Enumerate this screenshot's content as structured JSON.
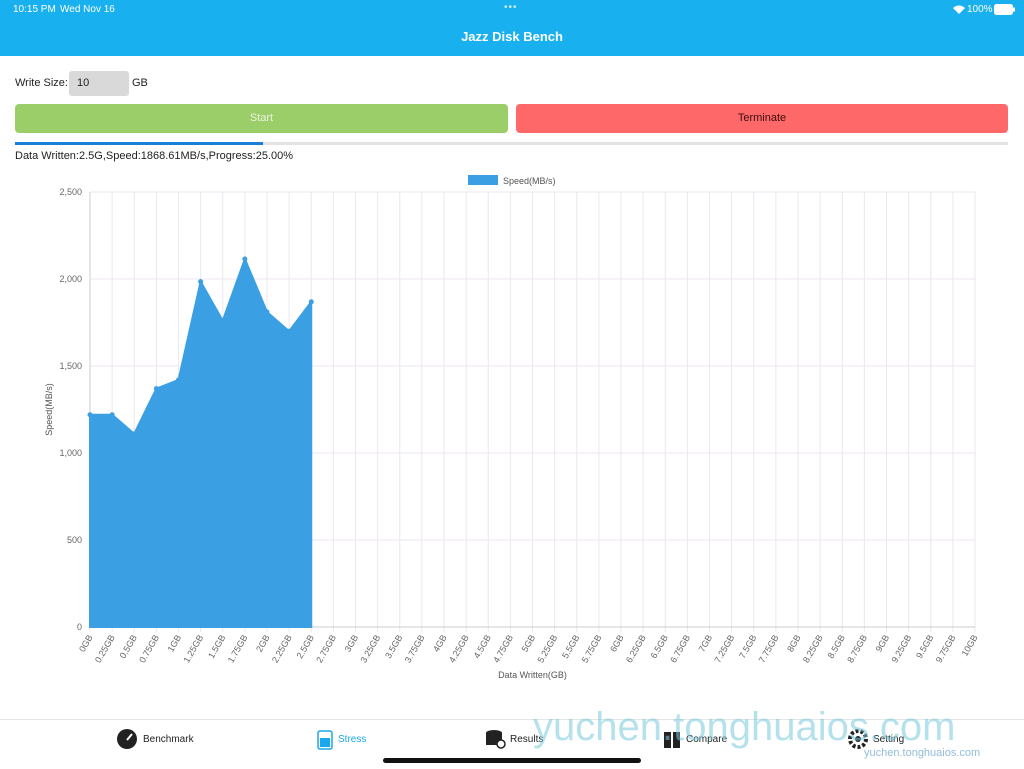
{
  "status_bar": {
    "time": "10:15 PM",
    "date": "Wed Nov 16",
    "battery": "100%"
  },
  "nav": {
    "title": "Jazz Disk Bench"
  },
  "form": {
    "label": "Write Size:",
    "value": "10",
    "unit": "GB"
  },
  "buttons": {
    "start": "Start",
    "terminate": "Terminate"
  },
  "progress": {
    "text": "Data Written:2.5G,Speed:1868.61MB/s,Progress:25.00%",
    "value": 25,
    "max": 100
  },
  "chart_data": {
    "type": "area",
    "x_label": "Data Written(GB)",
    "y_label": "Speed(MB/s)",
    "categories": [
      "0GB",
      "0.25GB",
      "0.5GB",
      "0.75GB",
      "1GB",
      "1.25GB",
      "1.5GB",
      "1.75GB",
      "2GB",
      "2.25GB",
      "2.5GB",
      "2.75GB",
      "3GB",
      "3.25GB",
      "3.5GB",
      "3.75GB",
      "4GB",
      "4.25GB",
      "4.5GB",
      "4.75GB",
      "5GB",
      "5.25GB",
      "5.5GB",
      "5.75GB",
      "6GB",
      "6.25GB",
      "6.5GB",
      "6.75GB",
      "7GB",
      "7.25GB",
      "7.5GB",
      "7.75GB",
      "8GB",
      "8.25GB",
      "8.5GB",
      "8.75GB",
      "9GB",
      "9.25GB",
      "9.5GB",
      "9.75GB",
      "10GB"
    ],
    "series": [
      {
        "name": "Speed(MB/s)",
        "color": "#3a9fe3",
        "values": [
          1220,
          1220,
          1110,
          1370,
          1420,
          1985,
          1760,
          2115,
          1810,
          1700,
          1868.61,
          null,
          null,
          null,
          null,
          null,
          null,
          null,
          null,
          null,
          null,
          null,
          null,
          null,
          null,
          null,
          null,
          null,
          null,
          null,
          null,
          null,
          null,
          null,
          null,
          null,
          null,
          null,
          null,
          null,
          null
        ]
      }
    ],
    "ylim": [
      0,
      2500
    ],
    "yticks": [
      0,
      500,
      {
        "value": 1000,
        "label": "1,000"
      },
      {
        "value": 1500,
        "label": "1,500"
      },
      {
        "value": 2000,
        "label": "2,000"
      },
      {
        "value": 2500,
        "label": "2,500"
      }
    ],
    "grid": true,
    "legend": "top"
  },
  "tabs": [
    {
      "label": "Benchmark"
    },
    {
      "label": "Stress",
      "active": true
    },
    {
      "label": "Results"
    },
    {
      "label": "Compare"
    },
    {
      "label": "Setting"
    }
  ],
  "watermark": {
    "large": "yuchen.tonghuaios.com",
    "small": "yuchen.tonghuaios.com"
  }
}
